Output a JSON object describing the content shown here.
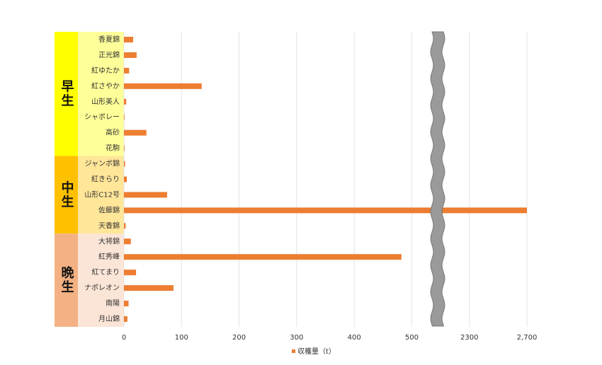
{
  "chart_data": {
    "type": "bar",
    "orientation": "horizontal",
    "groups": [
      {
        "name": "早生",
        "color": "#ffff00",
        "label_color": "#ffff99",
        "categories": [
          "香夏錦",
          "正光錦",
          "紅ゆたか",
          "紅さやか",
          "山形美人",
          "シャボレー",
          "高砂",
          "花駒"
        ]
      },
      {
        "name": "中生",
        "color": "#ffc000",
        "label_color": "#ffe699",
        "categories": [
          "ジャンボ錦",
          "紅きらり",
          "山形C12号",
          "佐藤錦",
          "天香錦"
        ]
      },
      {
        "name": "晩生",
        "color": "#f4b183",
        "label_color": "#fbe5d6",
        "categories": [
          "大将錦",
          "紅秀峰",
          "紅てまり",
          "ナポレオン",
          "南陽",
          "月山錦"
        ]
      }
    ],
    "series": [
      {
        "name": "収穫量（t）",
        "color": "#ed7d31",
        "values": [
          16,
          22,
          9,
          135,
          4,
          1,
          39,
          1,
          2,
          5,
          75,
          2700,
          3,
          12,
          482,
          21,
          86,
          8,
          6
        ]
      }
    ],
    "xlim": [
      0,
      2700
    ],
    "xticks": [
      0,
      100,
      200,
      300,
      400,
      500,
      2300,
      {
        "value": 2700,
        "label": "2,700"
      }
    ],
    "axis_break": true,
    "grid": true,
    "legend": "bottom"
  }
}
